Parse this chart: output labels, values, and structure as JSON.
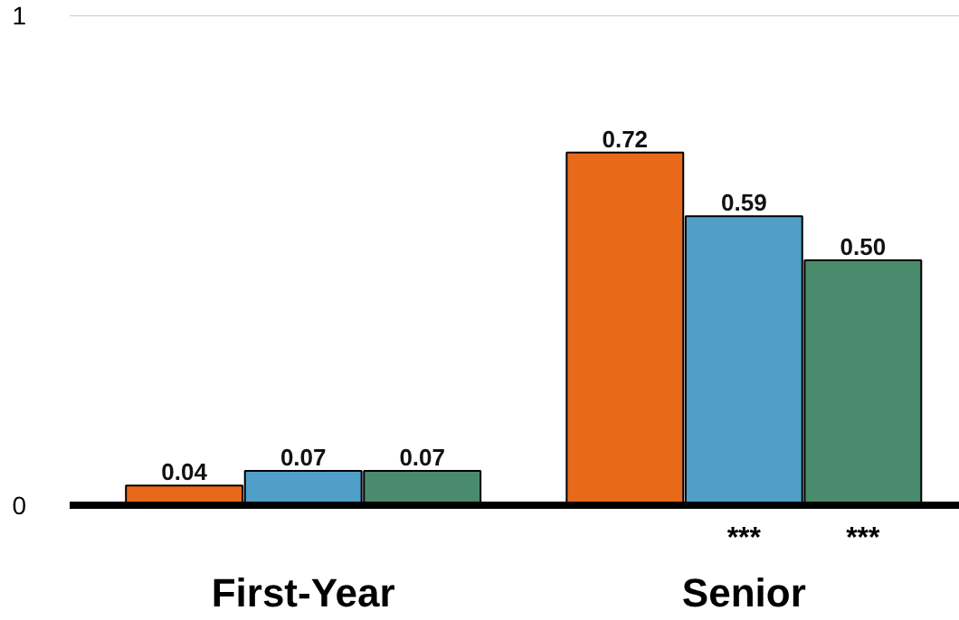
{
  "chart_data": {
    "type": "bar",
    "categories": [
      "First-Year",
      "Senior"
    ],
    "series": [
      {
        "color": "#e8691a",
        "values": [
          0.04,
          0.72
        ],
        "value_labels": [
          "0.04",
          "0.72"
        ]
      },
      {
        "color": "#4f9fc9",
        "values": [
          0.07,
          0.59
        ],
        "value_labels": [
          "0.07",
          "0.59"
        ]
      },
      {
        "color": "#4a8b6e",
        "values": [
          0.07,
          0.5
        ],
        "value_labels": [
          "0.07",
          "0.50"
        ]
      }
    ],
    "ylim": [
      0,
      1
    ],
    "yticks": [
      0,
      1
    ],
    "ref_lines": [
      {
        "axis": "y",
        "value": 1,
        "color": "#cccccc"
      }
    ],
    "annotations": [
      "***",
      "***"
    ]
  }
}
